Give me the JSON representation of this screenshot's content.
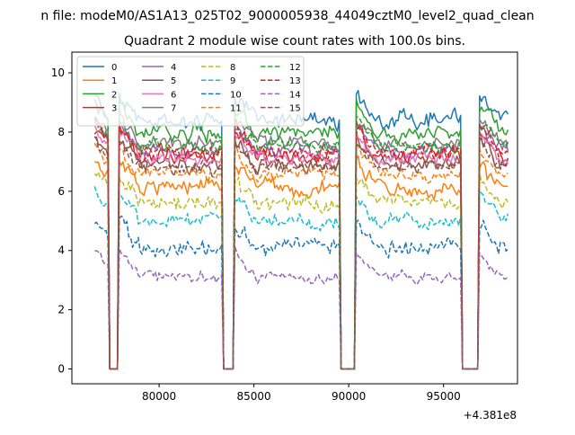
{
  "chart_data": {
    "type": "line",
    "suptitle": "n file: modeM0/AS1A13_025T02_9000005938_44049cztM0_level2_quad_clean",
    "title": "Quadrant 2 module wise count rates with 100.0s bins.",
    "xlabel": "",
    "ylabel": "",
    "offset_text": "+4.381e8",
    "xlim": [
      75400,
      98900
    ],
    "ylim": [
      -0.5,
      10.7
    ],
    "x_range": [
      76600,
      98400
    ],
    "xticks": [
      80000,
      85000,
      90000,
      95000
    ],
    "xtick_labels": [
      "80000",
      "85000",
      "90000",
      "95000"
    ],
    "yticks": [
      0,
      2,
      4,
      6,
      8,
      10
    ],
    "ytick_labels": [
      "0",
      "2",
      "4",
      "6",
      "8",
      "10"
    ],
    "gaps": [
      [
        77400,
        77800
      ],
      [
        83400,
        83900
      ],
      [
        89600,
        90300
      ],
      [
        96000,
        96800
      ]
    ],
    "legend_position": "upper-left",
    "series": [
      {
        "name": "0",
        "mean": 8.4,
        "noise": 0.45,
        "color": "#1f77b4",
        "dashed": false
      },
      {
        "name": "1",
        "mean": 6.1,
        "noise": 0.4,
        "color": "#ff7f0e",
        "dashed": false
      },
      {
        "name": "2",
        "mean": 8.0,
        "noise": 0.4,
        "color": "#2ca02c",
        "dashed": false
      },
      {
        "name": "3",
        "mean": 7.2,
        "noise": 0.4,
        "color": "#d62728",
        "dashed": false
      },
      {
        "name": "4",
        "mean": 7.4,
        "noise": 0.35,
        "color": "#9467bd",
        "dashed": false
      },
      {
        "name": "5",
        "mean": 6.9,
        "noise": 0.35,
        "color": "#8c564b",
        "dashed": false
      },
      {
        "name": "6",
        "mean": 7.1,
        "noise": 0.35,
        "color": "#e377c2",
        "dashed": false
      },
      {
        "name": "7",
        "mean": 7.6,
        "noise": 0.35,
        "color": "#7f7f7f",
        "dashed": false
      },
      {
        "name": "8",
        "mean": 5.6,
        "noise": 0.4,
        "color": "#bcbd22",
        "dashed": true
      },
      {
        "name": "9",
        "mean": 5.0,
        "noise": 0.35,
        "color": "#17becf",
        "dashed": true
      },
      {
        "name": "10",
        "mean": 4.1,
        "noise": 0.4,
        "color": "#1f77b4",
        "dashed": true
      },
      {
        "name": "11",
        "mean": 6.6,
        "noise": 0.35,
        "color": "#ff7f0e",
        "dashed": true
      },
      {
        "name": "12",
        "mean": 7.5,
        "noise": 0.35,
        "color": "#2ca02c",
        "dashed": true
      },
      {
        "name": "13",
        "mean": 7.3,
        "noise": 0.35,
        "color": "#d62728",
        "dashed": true
      },
      {
        "name": "14",
        "mean": 3.1,
        "noise": 0.25,
        "color": "#9467bd",
        "dashed": true
      },
      {
        "name": "15",
        "mean": 6.8,
        "noise": 0.35,
        "color": "#8c564b",
        "dashed": true
      }
    ]
  }
}
